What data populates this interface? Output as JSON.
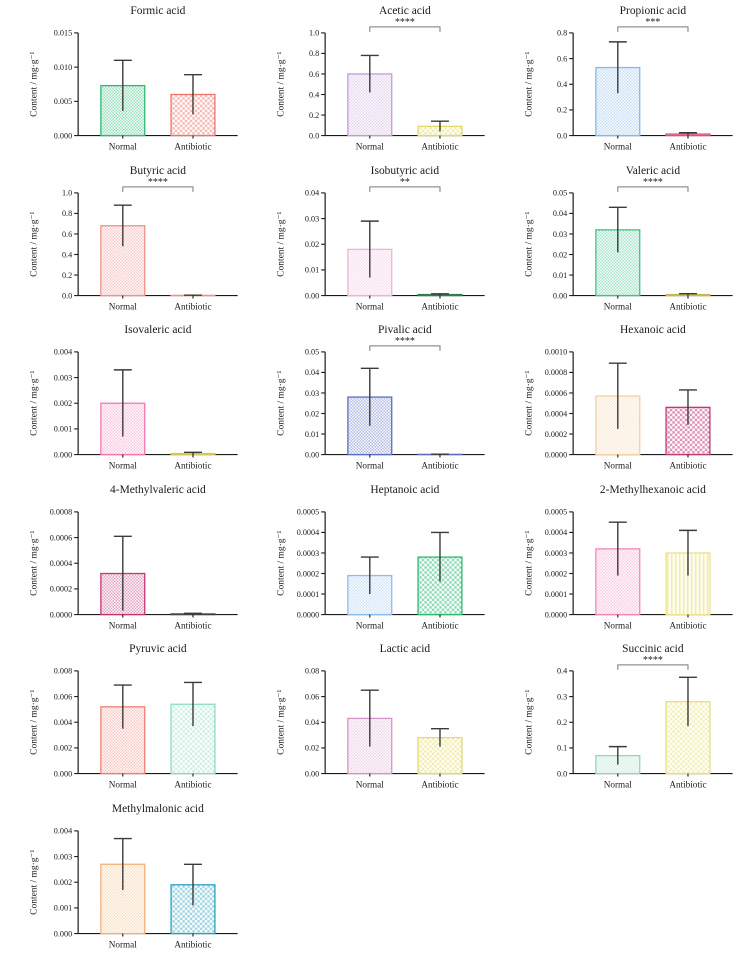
{
  "figure": {
    "description_visible": false,
    "shared": {
      "ylabel": "Content / mg·g⁻¹",
      "categories": [
        "Normal",
        "Antibiotic"
      ],
      "axis_color": "#1a1a1a",
      "error_bar_color": "#3a3a3a",
      "significance_bracket_color": "#7a7a7a"
    }
  },
  "chart_data": [
    {
      "type": "bar",
      "title": "Formic acid",
      "ylabel": "Content / mg·g⁻¹",
      "categories": [
        "Normal",
        "Antibiotic"
      ],
      "values": [
        0.0073,
        0.006
      ],
      "errors_top": [
        0.011,
        0.0089
      ],
      "ylim": [
        0,
        0.015
      ],
      "ytick_step": 0.005,
      "ytick_decimals": 3,
      "significance": "",
      "bars": [
        {
          "border": "#2eb872",
          "hatch": "#93dfb8",
          "pattern": "checker-fine"
        },
        {
          "border": "#ee7468",
          "hatch": "#f6bcb6",
          "pattern": "checker-coarse"
        }
      ]
    },
    {
      "type": "bar",
      "title": "Acetic acid",
      "ylabel": "Content / mg·g⁻¹",
      "categories": [
        "Normal",
        "Antibiotic"
      ],
      "values": [
        0.6,
        0.09
      ],
      "errors_top": [
        0.78,
        0.14
      ],
      "ylim": [
        0,
        1.0
      ],
      "ytick_step": 0.2,
      "ytick_decimals": 1,
      "significance": "****",
      "bars": [
        {
          "border": "#c49bd8",
          "hatch": "#e5d4ef",
          "pattern": "checker-fine"
        },
        {
          "border": "#e3d76e",
          "hatch": "#f2ecab",
          "pattern": "checker-coarse"
        }
      ]
    },
    {
      "type": "bar",
      "title": "Propionic acid",
      "ylabel": "Content / mg·g⁻¹",
      "categories": [
        "Normal",
        "Antibiotic"
      ],
      "values": [
        0.53,
        0.012
      ],
      "errors_top": [
        0.73,
        0.022
      ],
      "ylim": [
        0,
        0.8
      ],
      "ytick_step": 0.2,
      "ytick_decimals": 1,
      "significance": "***",
      "bars": [
        {
          "border": "#84b9ea",
          "hatch": "#c4dcf5",
          "pattern": "checker-fine"
        },
        {
          "border": "#e04f7c",
          "hatch": "#ec93ae",
          "pattern": "checker-fine"
        }
      ]
    },
    {
      "type": "bar",
      "title": "Butyric acid",
      "ylabel": "Content / mg·g⁻¹",
      "categories": [
        "Normal",
        "Antibiotic"
      ],
      "values": [
        0.68,
        0.002
      ],
      "errors_top": [
        0.88,
        0.004
      ],
      "ylim": [
        0,
        1.0
      ],
      "ytick_step": 0.2,
      "ytick_decimals": 1,
      "significance": "****",
      "bars": [
        {
          "border": "#f0908a",
          "hatch": "#f8c8c4",
          "pattern": "checker-fine"
        },
        {
          "border": "#f0908a",
          "hatch": "#f8c8c4",
          "pattern": "checker-fine"
        }
      ]
    },
    {
      "type": "bar",
      "title": "Isobutyric acid",
      "ylabel": "Content / mg·g⁻¹",
      "categories": [
        "Normal",
        "Antibiotic"
      ],
      "values": [
        0.018,
        0.0004
      ],
      "errors_top": [
        0.029,
        0.0007
      ],
      "ylim": [
        0,
        0.04
      ],
      "ytick_step": 0.01,
      "ytick_decimals": 2,
      "significance": "**",
      "bars": [
        {
          "border": "#efb3d4",
          "hatch": "#f9dcec",
          "pattern": "checker-fine"
        },
        {
          "border": "#2f7d4f",
          "hatch": "#6fae8c",
          "pattern": "checker-fine"
        }
      ]
    },
    {
      "type": "bar",
      "title": "Valeric acid",
      "ylabel": "Content / mg·g⁻¹",
      "categories": [
        "Normal",
        "Antibiotic"
      ],
      "values": [
        0.032,
        0.0005
      ],
      "errors_top": [
        0.043,
        0.0009
      ],
      "ylim": [
        0,
        0.05
      ],
      "ytick_step": 0.01,
      "ytick_decimals": 2,
      "significance": "****",
      "bars": [
        {
          "border": "#3fc287",
          "hatch": "#a2e4c6",
          "pattern": "checker-fine"
        },
        {
          "border": "#c8b94a",
          "hatch": "#e2d78a",
          "pattern": "checker-fine"
        }
      ]
    },
    {
      "type": "bar",
      "title": "Isovaleric acid",
      "ylabel": "Content / mg·g⁻¹",
      "categories": [
        "Normal",
        "Antibiotic"
      ],
      "values": [
        0.002,
        4e-05
      ],
      "errors_top": [
        0.0033,
        9e-05
      ],
      "ylim": [
        0,
        0.004
      ],
      "ytick_step": 0.001,
      "ytick_decimals": 3,
      "significance": "",
      "bars": [
        {
          "border": "#f078ae",
          "hatch": "#f9c4dd",
          "pattern": "checker-fine"
        },
        {
          "border": "#d5c552",
          "hatch": "#e8dd90",
          "pattern": "checker-fine"
        }
      ]
    },
    {
      "type": "bar",
      "title": "Pivalic acid",
      "ylabel": "Content / mg·g⁻¹",
      "categories": [
        "Normal",
        "Antibiotic"
      ],
      "values": [
        0.028,
        0.0001
      ],
      "errors_top": [
        0.042,
        0.0002
      ],
      "ylim": [
        0,
        0.05
      ],
      "ytick_step": 0.01,
      "ytick_decimals": 2,
      "significance": "****",
      "bars": [
        {
          "border": "#5a6ec1",
          "hatch": "#b0b9e2",
          "pattern": "checker-fine"
        },
        {
          "border": "#5a6ec1",
          "hatch": "#b0b9e2",
          "pattern": "checker-fine"
        }
      ]
    },
    {
      "type": "bar",
      "title": "Hexanoic acid",
      "ylabel": "Content / mg·g⁻¹",
      "categories": [
        "Normal",
        "Antibiotic"
      ],
      "values": [
        0.00057,
        0.00046
      ],
      "errors_top": [
        0.00089,
        0.00063
      ],
      "ylim": [
        0,
        0.001
      ],
      "ytick_step": 0.0002,
      "ytick_decimals": 4,
      "significance": "",
      "bars": [
        {
          "border": "#f6cfa4",
          "hatch": "#fbe9d3",
          "pattern": "checker-fine"
        },
        {
          "border": "#c13a74",
          "hatch": "#df93b8",
          "pattern": "checker-coarse"
        }
      ]
    },
    {
      "type": "bar",
      "title": "4-Methylvaleric acid",
      "ylabel": "Content / mg·g⁻¹",
      "categories": [
        "Normal",
        "Antibiotic"
      ],
      "values": [
        0.00032,
        5e-06
      ],
      "errors_top": [
        0.00061,
        1e-05
      ],
      "ylim": [
        0,
        0.0008
      ],
      "ytick_step": 0.0002,
      "ytick_decimals": 4,
      "significance": "",
      "bars": [
        {
          "border": "#c73472",
          "hatch": "#e39fbf",
          "pattern": "checker-fine"
        },
        {
          "border": "#444444",
          "hatch": "#888888",
          "pattern": "checker-fine"
        }
      ]
    },
    {
      "type": "bar",
      "title": "Heptanoic acid",
      "ylabel": "Content / mg·g⁻¹",
      "categories": [
        "Normal",
        "Antibiotic"
      ],
      "values": [
        0.00019,
        0.00028
      ],
      "errors_top": [
        0.00028,
        0.0004
      ],
      "ylim": [
        0,
        0.0005
      ],
      "ytick_step": 0.0001,
      "ytick_decimals": 4,
      "significance": "",
      "bars": [
        {
          "border": "#8cbcec",
          "hatch": "#cde2f7",
          "pattern": "checker-fine"
        },
        {
          "border": "#2db873",
          "hatch": "#8fdcb7",
          "pattern": "checker-coarse"
        }
      ]
    },
    {
      "type": "bar",
      "title": "2-Methylhexanoic acid",
      "ylabel": "Content / mg·g⁻¹",
      "categories": [
        "Normal",
        "Antibiotic"
      ],
      "values": [
        0.00032,
        0.0003
      ],
      "errors_top": [
        0.00045,
        0.00041
      ],
      "ylim": [
        0,
        0.0005
      ],
      "ytick_step": 0.0001,
      "ytick_decimals": 4,
      "significance": "",
      "bars": [
        {
          "border": "#f088b7",
          "hatch": "#f8cade",
          "pattern": "checker-fine"
        },
        {
          "border": "#ece287",
          "hatch": "#f4eda9",
          "pattern": "vstripes"
        }
      ]
    },
    {
      "type": "bar",
      "title": "Pyruvic acid",
      "ylabel": "Content / mg·g⁻¹",
      "categories": [
        "Normal",
        "Antibiotic"
      ],
      "values": [
        0.0052,
        0.0054
      ],
      "errors_top": [
        0.0069,
        0.0071
      ],
      "ylim": [
        0,
        0.008
      ],
      "ytick_step": 0.002,
      "ytick_decimals": 3,
      "significance": "",
      "bars": [
        {
          "border": "#ee7f74",
          "hatch": "#f8c5c0",
          "pattern": "checker-fine"
        },
        {
          "border": "#8edcc2",
          "hatch": "#d0f0e4",
          "pattern": "checker-coarse"
        }
      ]
    },
    {
      "type": "bar",
      "title": "Lactic acid",
      "ylabel": "Content / mg·g⁻¹",
      "categories": [
        "Normal",
        "Antibiotic"
      ],
      "values": [
        0.043,
        0.028
      ],
      "errors_top": [
        0.065,
        0.035
      ],
      "ylim": [
        0,
        0.08
      ],
      "ytick_step": 0.02,
      "ytick_decimals": 2,
      "significance": "",
      "bars": [
        {
          "border": "#d593c8",
          "hatch": "#eed4e9",
          "pattern": "checker-fine"
        },
        {
          "border": "#e5d973",
          "hatch": "#f3edae",
          "pattern": "checker-coarse"
        }
      ]
    },
    {
      "type": "bar",
      "title": "Succinic acid",
      "ylabel": "Content / mg·g⁻¹",
      "categories": [
        "Normal",
        "Antibiotic"
      ],
      "values": [
        0.07,
        0.28
      ],
      "errors_top": [
        0.105,
        0.375
      ],
      "ylim": [
        0,
        0.4
      ],
      "ytick_step": 0.1,
      "ytick_decimals": 1,
      "significance": "****",
      "bars": [
        {
          "border": "#93d6ba",
          "hatch": "#d2eee1",
          "pattern": "checker-fine"
        },
        {
          "border": "#e7df7e",
          "hatch": "#f5f0b8",
          "pattern": "checker-coarse"
        }
      ]
    },
    {
      "type": "bar",
      "title": "Methylmalonic acid",
      "ylabel": "Content / mg·g⁻¹",
      "categories": [
        "Normal",
        "Antibiotic"
      ],
      "values": [
        0.0027,
        0.0019
      ],
      "errors_top": [
        0.0037,
        0.0027
      ],
      "ylim": [
        0,
        0.004
      ],
      "ytick_step": 0.001,
      "ytick_decimals": 3,
      "significance": "",
      "bars": [
        {
          "border": "#f4b076",
          "hatch": "#fadec0",
          "pattern": "checker-fine"
        },
        {
          "border": "#2da0c0",
          "hatch": "#a0d6e5",
          "pattern": "checker-coarse"
        }
      ]
    }
  ]
}
